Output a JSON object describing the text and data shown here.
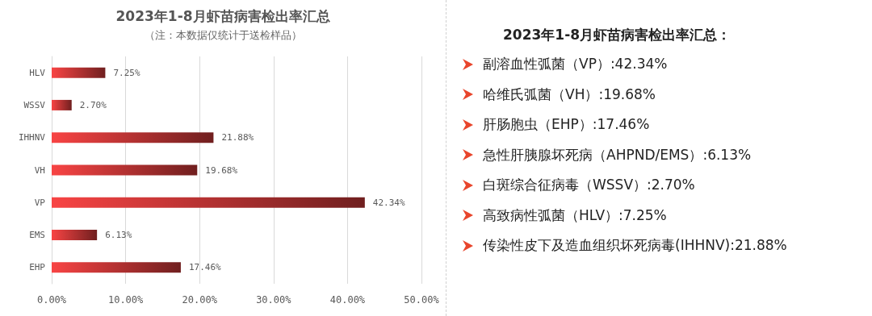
{
  "chart_data": [
    {
      "type": "bar",
      "orientation": "horizontal",
      "title": "2023年1-8月虾苗病害检出率汇总",
      "subtitle": "（注：本数据仅统计于送检样品）",
      "categories": [
        "HLV",
        "WSSV",
        "IHHNV",
        "VH",
        "VP",
        "EMS",
        "EHP"
      ],
      "values": [
        7.25,
        2.7,
        21.88,
        19.68,
        42.34,
        6.13,
        17.46
      ],
      "value_labels": [
        "7.25%",
        "2.70%",
        "21.88%",
        "19.68%",
        "42.34%",
        "6.13%",
        "17.46%"
      ],
      "color": "#f84444",
      "xlim": [
        0,
        50
      ],
      "xticks": [
        {
          "value": 0,
          "label": "0.00%"
        },
        {
          "value": 10,
          "label": "10.00%"
        },
        {
          "value": 20,
          "label": "20.00%"
        },
        {
          "value": 30,
          "label": "30.00%"
        },
        {
          "value": 40,
          "label": "40.00%"
        },
        {
          "value": 50,
          "label": "50.00%"
        }
      ],
      "grid": "x"
    },
    {
      "type": "other",
      "title": "2023年1-8月虾苗病害检出率汇总：",
      "annotations": [
        "副溶血性弧菌（VP）:42.34%",
        "哈维氏弧菌（VH）:19.68%",
        "肝肠胞虫（EHP）:17.46%",
        "急性肝胰腺坏死病（AHPND/EMS）:6.13%",
        "白斑综合征病毒（WSSV）:2.70%",
        "高致病性弧菌（HLV）:7.25%",
        "传染性皮下及造血组织坏死病毒(IHHNV):21.88%"
      ]
    }
  ]
}
